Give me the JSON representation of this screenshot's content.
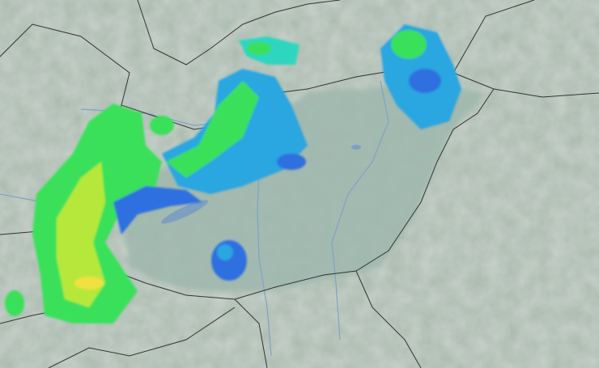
{
  "map": {
    "type": "weather-radar",
    "colors": {
      "terrain": "#a9b9ae",
      "mountains": "#c9d0c8",
      "lowland": "#9fb8ae",
      "border": "#333333",
      "river": "#7fa3c4",
      "lake": "#7f9fc0",
      "radar_light": "#2f6fe0",
      "radar_mid": "#29a6e0",
      "radar_cyan": "#2fd6c0",
      "radar_green": "#3be05a",
      "radar_yellowgreen": "#b6e83a",
      "radar_yellow": "#f0e040"
    }
  }
}
